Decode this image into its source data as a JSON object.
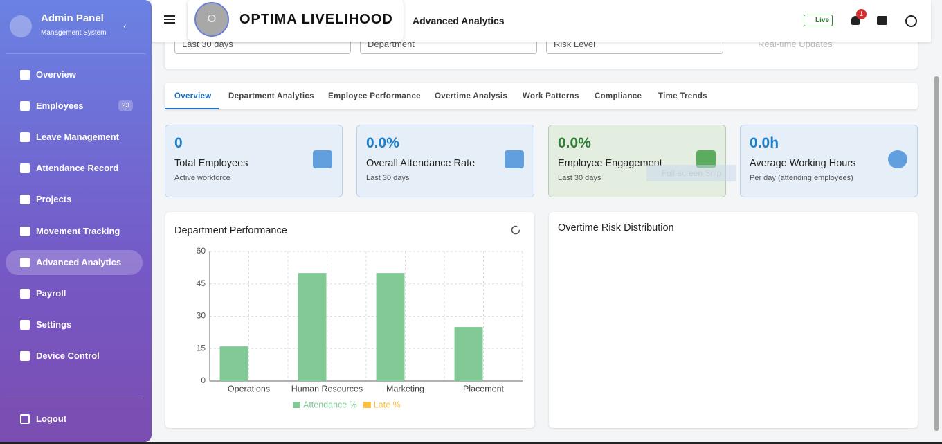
{
  "sidebar": {
    "title": "Admin Panel",
    "subtitle": "Management System",
    "items": [
      {
        "label": "Overview"
      },
      {
        "label": "Employees",
        "badge": "23"
      },
      {
        "label": "Leave Management"
      },
      {
        "label": "Attendance Record"
      },
      {
        "label": "Projects"
      },
      {
        "label": "Movement Tracking"
      },
      {
        "label": "Advanced Analytics",
        "active": true
      },
      {
        "label": "Payroll"
      },
      {
        "label": "Settings"
      },
      {
        "label": "Device Control"
      }
    ],
    "logout": "Logout"
  },
  "header": {
    "logo_letter": "O",
    "brand": "OPTIMA LIVELIHOOD",
    "page_title": "Advanced Analytics",
    "live": "Live",
    "notifications": "1"
  },
  "filters": {
    "period": "Last 30 days",
    "department": "Department",
    "risk": "Risk Level",
    "realtime": "Real-time Updates"
  },
  "tabs": [
    "Overview",
    "Department Analytics",
    "Employee Performance",
    "Overtime Analysis",
    "Work Patterns",
    "Compliance",
    "Time Trends"
  ],
  "cards": [
    {
      "value": "0",
      "label": "Total Employees",
      "sub": "Active workforce"
    },
    {
      "value": "0.0%",
      "label": "Overall Attendance Rate",
      "sub": "Last 30 days"
    },
    {
      "value": "0.0%",
      "label": "Employee Engagement",
      "sub": "Last 30 days"
    },
    {
      "value": "0.0h",
      "label": "Average Working Hours",
      "sub": "Per day (attending employees)"
    }
  ],
  "overlay_text": "Full-screen Snip",
  "chart_data": {
    "type": "bar",
    "title": "Department Performance",
    "categories": [
      "Operations",
      "Human Resources",
      "Marketing",
      "Placement"
    ],
    "series": [
      {
        "name": "Attendance %",
        "color": "#81c995",
        "values": [
          16,
          50,
          50,
          25
        ]
      },
      {
        "name": "Late %",
        "color": "#fbbf44",
        "values": [
          0,
          0,
          0,
          0
        ]
      }
    ],
    "ylim": [
      0,
      60
    ],
    "yticks": [
      0,
      15,
      30,
      45,
      60
    ],
    "grid": true
  },
  "panel2": {
    "title": "Overtime Risk Distribution"
  }
}
